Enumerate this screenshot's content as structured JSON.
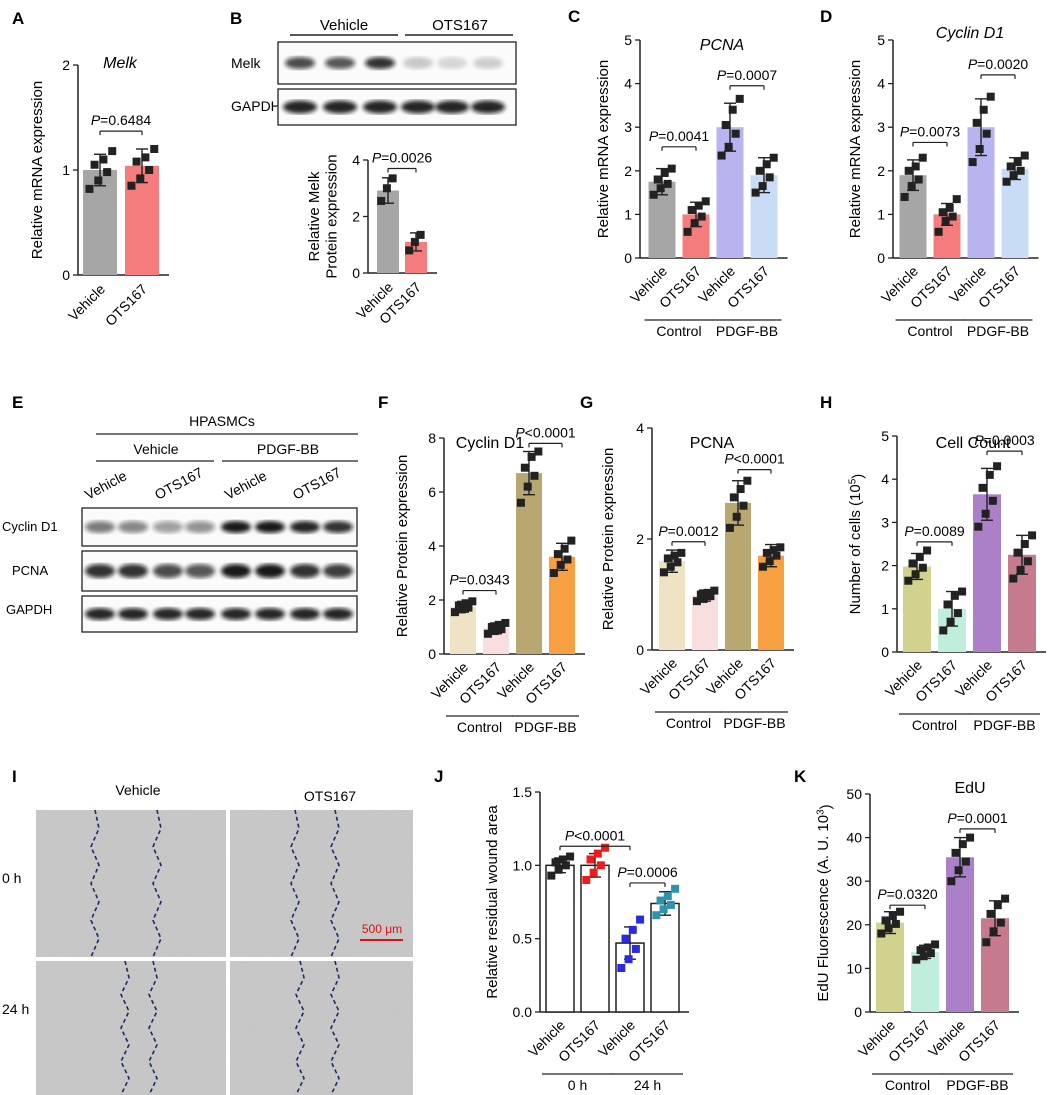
{
  "panels": {
    "A": {
      "letter": "A",
      "title": "Melk"
    },
    "B": {
      "letter": "B",
      "blot_groups": [
        "Vehicle",
        "OTS167"
      ],
      "blot_rows": [
        "Melk",
        "GAPDH"
      ]
    },
    "C": {
      "letter": "C",
      "title": "PCNA"
    },
    "D": {
      "letter": "D",
      "title": "Cyclin D1"
    },
    "E": {
      "letter": "E",
      "header": "HPASMCs",
      "groups": [
        "Vehicle",
        "PDGF-BB"
      ],
      "lanes": [
        "Vehicle",
        "OTS167",
        "Vehicle",
        "OTS167"
      ],
      "rows": [
        "Cyclin D1",
        "PCNA",
        "GAPDH"
      ]
    },
    "F": {
      "letter": "F",
      "title": "Cyclin D1"
    },
    "G": {
      "letter": "G",
      "title": "PCNA"
    },
    "H": {
      "letter": "H",
      "title": "Cell Count"
    },
    "I": {
      "letter": "I",
      "cols": [
        "Vehicle",
        "OTS167"
      ],
      "rows": [
        "0 h",
        "24 h"
      ],
      "scale_bar": "500 μm"
    },
    "J": {
      "letter": "J"
    },
    "K": {
      "letter": "K",
      "title": "EdU"
    }
  },
  "colors": {
    "gray": "#a6a6a6",
    "red": "#f47c7c",
    "lavender": "#b8b4f0",
    "lightblue": "#c9dcf6",
    "cream": "#eee3c4",
    "pink": "#f8dede",
    "olive": "#b9a772",
    "orange": "#f6a042",
    "khaki": "#d2d18e",
    "mint": "#bfeedd",
    "purple": "#ab80c8",
    "rose": "#c57a8e",
    "white": "#ffffff",
    "black": "#222222",
    "blue": "#2a2ae0",
    "teal": "#2e93ad",
    "redpt": "#ee1c1c"
  },
  "chart_data": [
    {
      "id": "A",
      "type": "bar",
      "title": "Melk",
      "ylabel": "Relative mRNA expression",
      "ylim": [
        0,
        2
      ],
      "yticks": [
        0,
        1,
        2
      ],
      "categories": [
        "Vehicle",
        "OTS167"
      ],
      "values": [
        1.0,
        1.04
      ],
      "errors": [
        0.15,
        0.16
      ],
      "bar_colors": [
        "gray",
        "red"
      ],
      "points": [
        [
          0.82,
          0.9,
          0.98,
          1.05,
          1.1,
          1.18
        ],
        [
          0.85,
          0.92,
          1.0,
          1.08,
          1.12,
          1.2
        ]
      ],
      "comparisons": [
        {
          "from": 0,
          "to": 1,
          "label": "=0.6484",
          "y": 1.37
        }
      ]
    },
    {
      "id": "B",
      "type": "bar",
      "ylabel": "Relative Melk Protein expression",
      "ylim": [
        0,
        4
      ],
      "yticks": [
        0,
        2,
        4
      ],
      "categories": [
        "Vehicle",
        "OTS167"
      ],
      "values": [
        2.92,
        1.1
      ],
      "errors": [
        0.45,
        0.32
      ],
      "bar_colors": [
        "gray",
        "red"
      ],
      "points": [
        [
          2.55,
          3.0,
          3.35
        ],
        [
          0.8,
          1.1,
          1.35
        ]
      ],
      "comparisons": [
        {
          "from": 0,
          "to": 1,
          "label": "=0.0026",
          "y": 3.7
        }
      ]
    },
    {
      "id": "C",
      "type": "bar",
      "title": "PCNA",
      "ylabel": "Relative mRNA expression",
      "ylim": [
        0,
        5
      ],
      "yticks": [
        0,
        1,
        2,
        3,
        4,
        5
      ],
      "categories": [
        "Vehicle",
        "OTS167",
        "Vehicle",
        "OTS167"
      ],
      "group_labels": [
        "Control",
        "PDGF-BB"
      ],
      "values": [
        1.75,
        1.0,
        3.0,
        1.9
      ],
      "errors": [
        0.3,
        0.28,
        0.55,
        0.4
      ],
      "bar_colors": [
        "gray",
        "red",
        "lavender",
        "lightblue"
      ],
      "points": [
        [
          1.45,
          1.6,
          1.7,
          1.8,
          1.95,
          2.05
        ],
        [
          0.6,
          0.8,
          0.95,
          1.1,
          1.2,
          1.3
        ],
        [
          2.35,
          2.55,
          2.85,
          3.05,
          3.4,
          3.65
        ],
        [
          1.5,
          1.65,
          1.85,
          2.0,
          2.15,
          2.3
        ]
      ],
      "comparisons": [
        {
          "from": 0,
          "to": 1,
          "label": "=0.0041",
          "y": 2.55
        },
        {
          "from": 2,
          "to": 3,
          "label": "=0.0007",
          "y": 3.95
        }
      ]
    },
    {
      "id": "D",
      "type": "bar",
      "title": "Cyclin D1",
      "ylabel": "Relative mRNA expression",
      "ylim": [
        0,
        5
      ],
      "yticks": [
        0,
        1,
        2,
        3,
        4,
        5
      ],
      "categories": [
        "Vehicle",
        "OTS167",
        "Vehicle",
        "OTS167"
      ],
      "group_labels": [
        "Control",
        "PDGF-BB"
      ],
      "values": [
        1.9,
        1.0,
        3.0,
        2.05
      ],
      "errors": [
        0.35,
        0.25,
        0.65,
        0.25
      ],
      "bar_colors": [
        "gray",
        "red",
        "lavender",
        "lightblue"
      ],
      "points": [
        [
          1.4,
          1.65,
          1.8,
          2.0,
          2.1,
          2.3
        ],
        [
          0.6,
          0.85,
          0.95,
          1.05,
          1.15,
          1.35
        ],
        [
          2.2,
          2.5,
          2.85,
          3.1,
          3.4,
          3.7
        ],
        [
          1.75,
          1.9,
          2.0,
          2.1,
          2.2,
          2.35
        ]
      ],
      "comparisons": [
        {
          "from": 0,
          "to": 1,
          "label": "=0.0073",
          "y": 2.65
        },
        {
          "from": 2,
          "to": 3,
          "label": "=0.0020",
          "y": 4.2
        }
      ]
    },
    {
      "id": "F",
      "type": "bar",
      "title": "Cyclin D1",
      "ylabel": "Relative Protein expression",
      "ylim": [
        0,
        8
      ],
      "yticks": [
        0,
        2,
        4,
        6,
        8
      ],
      "categories": [
        "Vehicle",
        "OTS167",
        "Vehicle",
        "OTS167"
      ],
      "group_labels": [
        "Control",
        "PDGF-BB"
      ],
      "values": [
        1.75,
        0.95,
        6.7,
        3.6
      ],
      "errors": [
        0.2,
        0.2,
        0.8,
        0.5
      ],
      "bar_colors": [
        "cream",
        "pink",
        "olive",
        "orange"
      ],
      "points": [
        [
          1.55,
          1.65,
          1.72,
          1.8,
          1.88,
          1.95
        ],
        [
          0.75,
          0.85,
          0.92,
          1.0,
          1.08,
          1.15
        ],
        [
          5.6,
          6.2,
          6.6,
          6.9,
          7.3,
          7.5
        ],
        [
          3.0,
          3.3,
          3.5,
          3.7,
          3.9,
          4.2
        ]
      ],
      "comparisons": [
        {
          "from": 0,
          "to": 1,
          "label": "=0.0343",
          "y": 2.35
        },
        {
          "from": 2,
          "to": 3,
          "label": "<0.0001",
          "y": 7.8
        }
      ]
    },
    {
      "id": "G",
      "type": "bar",
      "title": "PCNA",
      "ylabel": "Relative Protein expression",
      "ylim": [
        0,
        4
      ],
      "yticks": [
        0,
        2,
        4
      ],
      "categories": [
        "Vehicle",
        "OTS167",
        "Vehicle",
        "OTS167"
      ],
      "group_labels": [
        "Control",
        "PDGF-BB"
      ],
      "values": [
        1.6,
        0.98,
        2.65,
        1.7
      ],
      "errors": [
        0.2,
        0.1,
        0.4,
        0.2
      ],
      "bar_colors": [
        "cream",
        "pink",
        "olive",
        "orange"
      ],
      "points": [
        [
          1.4,
          1.5,
          1.58,
          1.65,
          1.7,
          1.75
        ],
        [
          0.88,
          0.92,
          0.97,
          1.0,
          1.03,
          1.07
        ],
        [
          2.2,
          2.4,
          2.6,
          2.75,
          2.9,
          3.05
        ],
        [
          1.5,
          1.6,
          1.7,
          1.75,
          1.8,
          1.85
        ]
      ],
      "comparisons": [
        {
          "from": 0,
          "to": 1,
          "label": "=0.0012",
          "y": 1.95
        },
        {
          "from": 2,
          "to": 3,
          "label": "<0.0001",
          "y": 3.25
        }
      ]
    },
    {
      "id": "H",
      "type": "bar",
      "title": "Cell Count",
      "ylabel": "Number of cells (10",
      "ylabel_sup": "5",
      "ylabel_end": ")",
      "ylim": [
        0,
        5
      ],
      "yticks": [
        0,
        1,
        2,
        3,
        4,
        5
      ],
      "categories": [
        "Vehicle",
        "OTS167",
        "Vehicle",
        "OTS167"
      ],
      "group_labels": [
        "Control",
        "PDGF-BB"
      ],
      "values": [
        1.98,
        1.0,
        3.65,
        2.25
      ],
      "errors": [
        0.3,
        0.4,
        0.6,
        0.45
      ],
      "bar_colors": [
        "khaki",
        "mint",
        "purple",
        "rose"
      ],
      "points": [
        [
          1.65,
          1.8,
          1.95,
          2.05,
          2.2,
          2.35
        ],
        [
          0.5,
          0.7,
          0.9,
          1.1,
          1.3,
          1.4
        ],
        [
          2.9,
          3.2,
          3.5,
          3.8,
          4.1,
          4.3
        ],
        [
          1.7,
          1.9,
          2.1,
          2.3,
          2.5,
          2.7
        ]
      ],
      "comparisons": [
        {
          "from": 0,
          "to": 1,
          "label": "=0.0089",
          "y": 2.55
        },
        {
          "from": 2,
          "to": 3,
          "label": "=0.0003",
          "y": 4.65
        }
      ]
    },
    {
      "id": "J",
      "type": "bar",
      "ylabel": "Relative residual wound area",
      "ylim": [
        0,
        1.5
      ],
      "yticks": [
        0,
        0.5,
        1,
        1.5
      ],
      "ytick_labels": [
        "0.0",
        "0.5",
        "1.0",
        "1.5"
      ],
      "categories": [
        "Vehicle",
        "OTS167",
        "Vehicle",
        "OTS167"
      ],
      "group_labels": [
        "0 h",
        "24 h"
      ],
      "values": [
        1.0,
        1.0,
        0.47,
        0.74
      ],
      "errors": [
        0.05,
        0.08,
        0.11,
        0.08
      ],
      "bar_colors": [
        "white",
        "white",
        "white",
        "white"
      ],
      "point_colors": [
        "black",
        "redpt",
        "blue",
        "teal"
      ],
      "points": [
        [
          0.93,
          0.97,
          1.0,
          1.02,
          1.04,
          1.06
        ],
        [
          0.9,
          0.95,
          1.0,
          1.04,
          1.08,
          1.12
        ],
        [
          0.3,
          0.36,
          0.43,
          0.5,
          0.56,
          0.63
        ],
        [
          0.66,
          0.7,
          0.73,
          0.76,
          0.79,
          0.84
        ]
      ],
      "comparisons": [
        {
          "from": 0,
          "to": 2,
          "label": "<0.0001",
          "y": 1.13
        },
        {
          "from": 2,
          "to": 3,
          "label": "=0.0006",
          "y": 0.88
        }
      ]
    },
    {
      "id": "K",
      "type": "bar",
      "title": "EdU",
      "ylabel": "EdU Fluorescence (A. U. 10",
      "ylabel_sup": "3",
      "ylabel_end": ")",
      "ylim": [
        0,
        50
      ],
      "yticks": [
        0,
        10,
        20,
        30,
        40,
        50
      ],
      "categories": [
        "Vehicle",
        "OTS167",
        "Vehicle",
        "OTS167"
      ],
      "group_labels": [
        "Control",
        "PDGF-BB"
      ],
      "values": [
        20.5,
        13.8,
        35.5,
        21.5
      ],
      "errors": [
        2.5,
        1.5,
        4.5,
        4.0
      ],
      "bar_colors": [
        "khaki",
        "mint",
        "purple",
        "rose"
      ],
      "points": [
        [
          18.0,
          19.2,
          20.2,
          21.0,
          22.0,
          23.0
        ],
        [
          12.0,
          12.8,
          13.5,
          14.2,
          14.8,
          15.5
        ],
        [
          30.0,
          32.5,
          34.5,
          36.5,
          38.5,
          40.0
        ],
        [
          16.0,
          18.5,
          20.5,
          22.5,
          24.5,
          26.0
        ]
      ],
      "comparisons": [
        {
          "from": 0,
          "to": 1,
          "label": "=0.0320",
          "y": 24.5
        },
        {
          "from": 2,
          "to": 3,
          "label": "=0.0001",
          "y": 42.0
        }
      ]
    }
  ]
}
